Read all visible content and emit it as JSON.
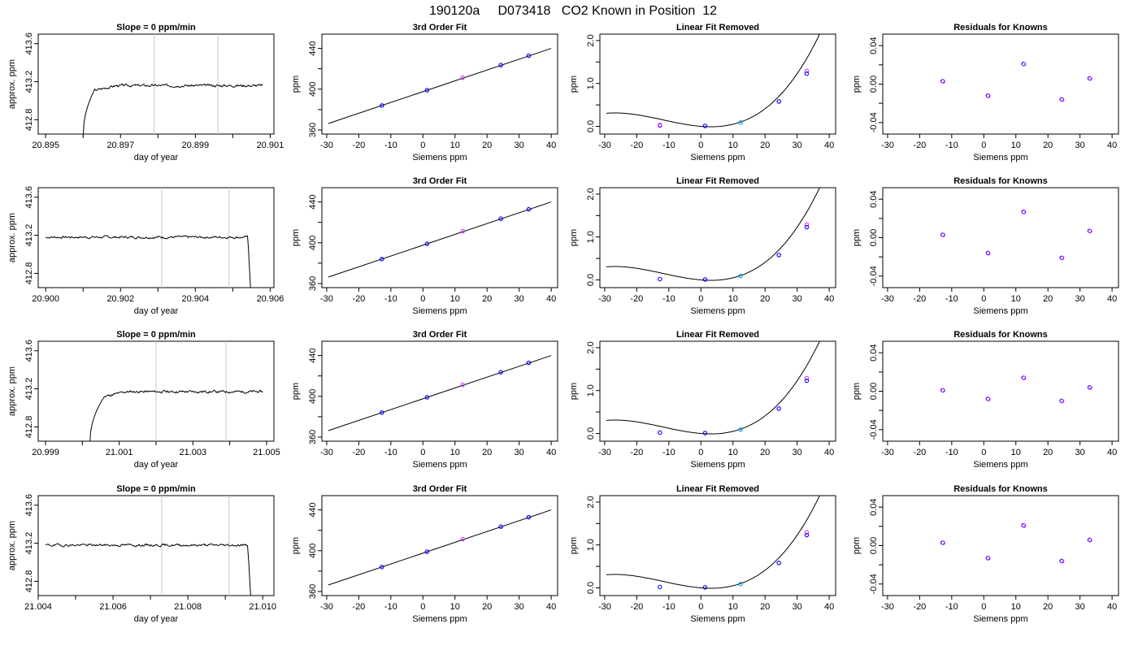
{
  "figure": {
    "title": "190120a     D073418   CO2 Known in Position  12"
  },
  "chart_data": [
    {
      "type": "line",
      "panel": "time",
      "title": "Slope =  0  ppm/min",
      "xlabel": "day of year",
      "ylabel": "approx. ppm",
      "xlim": [
        20.8948,
        20.9011
      ],
      "ylim": [
        412.65,
        413.7
      ],
      "xticks": [
        20.895,
        20.897,
        20.899,
        20.901
      ],
      "xtick_labels": [
        "20.895",
        "20.897",
        "20.899",
        "20.901"
      ],
      "yticks": [
        412.8,
        413.2,
        413.6
      ],
      "ytick_labels": [
        "412.8",
        "413.2",
        "413.6"
      ],
      "vlines": [
        20.8979,
        20.8996
      ],
      "trace": {
        "x_start": 20.896,
        "x_end": 20.9008,
        "rise_end": 20.8963,
        "fall": null,
        "level": 413.16,
        "low": 412.6,
        "seed": 3
      }
    },
    {
      "type": "line",
      "panel": "fit",
      "title": "3rd Order Fit",
      "xlabel": "Siemens ppm",
      "ylabel": "ppm",
      "xlim": [
        -31.5,
        42
      ],
      "ylim": [
        356,
        454
      ],
      "xticks": [
        -30,
        -20,
        -10,
        0,
        10,
        20,
        30,
        40
      ],
      "xtick_labels": [
        "-30",
        "-20",
        "-10",
        "0",
        "10",
        "20",
        "30",
        "40"
      ],
      "yticks": [
        360,
        400,
        440
      ],
      "ytick_labels": [
        "360",
        "400",
        "440"
      ],
      "line": {
        "x": [
          -29.5,
          40
        ],
        "intercept": 397.6,
        "slope": 1.06
      },
      "points": [
        {
          "x": -12.8,
          "y": 384.0,
          "color": "#0000ff"
        },
        {
          "x": 1.3,
          "y": 399.0,
          "color": "#0000ff"
        },
        {
          "x": 12.4,
          "y": 411.3,
          "color": "#cc33ff"
        },
        {
          "x": 24.3,
          "y": 423.6,
          "color": "#0000ff"
        },
        {
          "x": 33.0,
          "y": 432.8,
          "color": "#0000ff"
        }
      ]
    },
    {
      "type": "line",
      "panel": "linrem",
      "title": "Linear Fit Removed",
      "xlabel": "Siemens ppm",
      "ylabel": "ppm",
      "xlim": [
        -31.5,
        42
      ],
      "ylim": [
        -0.18,
        2.15
      ],
      "xticks": [
        -30,
        -20,
        -10,
        0,
        10,
        20,
        30,
        40
      ],
      "xtick_labels": [
        "-30",
        "-20",
        "-10",
        "0",
        "10",
        "20",
        "30",
        "40"
      ],
      "yticks": [
        0.0,
        1.0,
        2.0
      ],
      "ytick_labels": [
        "0.0",
        "1.0",
        "2.0"
      ],
      "curve": {
        "x": [
          -29.5,
          40
        ],
        "c0": 0.0,
        "c1": -0.006,
        "c2": 0.00085,
        "c3": 2.38e-05
      },
      "points": [
        {
          "x": -12.8,
          "y": 0.02,
          "color": "#0000ff"
        },
        {
          "x": -12.8,
          "y": 0.03,
          "color": "#cc33ff"
        },
        {
          "x": 1.3,
          "y": 0.01,
          "color": "#0000ff"
        },
        {
          "x": 12.4,
          "y": 0.09,
          "color": "#00aaff"
        },
        {
          "x": 24.3,
          "y": 0.58,
          "color": "#0000ff"
        },
        {
          "x": 33.0,
          "y": 1.23,
          "color": "#0000ff"
        },
        {
          "x": 33.0,
          "y": 1.29,
          "color": "#cc33ff"
        }
      ]
    },
    {
      "type": "scatter",
      "panel": "resid",
      "title": "Residuals for Knowns",
      "xlabel": "Siemens ppm",
      "ylabel": "ppm",
      "xlim": [
        -31.5,
        42
      ],
      "ylim": [
        -0.052,
        0.052
      ],
      "xticks": [
        -30,
        -20,
        -10,
        0,
        10,
        20,
        30,
        40
      ],
      "xtick_labels": [
        "-30",
        "-20",
        "-10",
        "0",
        "10",
        "20",
        "30",
        "40"
      ],
      "yticks": [
        -0.04,
        0.0,
        0.04
      ],
      "ytick_labels": [
        "-0.04",
        "0.00",
        "0.04"
      ],
      "points": [
        {
          "x": -12.8,
          "y": 0.003
        },
        {
          "x": 1.3,
          "y": -0.012
        },
        {
          "x": 12.4,
          "y": 0.021
        },
        {
          "x": 24.3,
          "y": -0.016
        },
        {
          "x": 33.0,
          "y": 0.006
        }
      ]
    },
    {
      "type": "line",
      "panel": "time",
      "title": "",
      "xlabel": "day of year",
      "ylabel": "approx. ppm",
      "xlim": [
        20.8998,
        20.9061
      ],
      "ylim": [
        412.65,
        413.7
      ],
      "xticks": [
        20.9,
        20.902,
        20.904,
        20.906
      ],
      "xtick_labels": [
        "20.900",
        "20.902",
        "20.904",
        "20.906"
      ],
      "yticks": [
        412.8,
        413.2,
        413.6
      ],
      "ytick_labels": [
        "412.8",
        "413.2",
        "413.6"
      ],
      "vlines": [
        20.9031,
        20.9049
      ],
      "trace": {
        "x_start": 20.9,
        "x_end": 20.9055,
        "rise_end": null,
        "fall": 20.9054,
        "level": 413.18,
        "low": 412.6,
        "seed": 7
      }
    },
    {
      "type": "line",
      "panel": "fit",
      "title": "3rd Order Fit",
      "xlabel": "Siemens ppm",
      "ylabel": "ppm",
      "xlim": [
        -31.5,
        42
      ],
      "ylim": [
        356,
        454
      ],
      "xticks": [
        -30,
        -20,
        -10,
        0,
        10,
        20,
        30,
        40
      ],
      "xtick_labels": [
        "-30",
        "-20",
        "-10",
        "0",
        "10",
        "20",
        "30",
        "40"
      ],
      "yticks": [
        360,
        400,
        440
      ],
      "ytick_labels": [
        "360",
        "400",
        "440"
      ],
      "line": {
        "x": [
          -29.5,
          40
        ],
        "intercept": 397.6,
        "slope": 1.06
      },
      "points": [
        {
          "x": -12.8,
          "y": 384.0,
          "color": "#0000ff"
        },
        {
          "x": 1.3,
          "y": 399.0,
          "color": "#0000ff"
        },
        {
          "x": 12.4,
          "y": 411.3,
          "color": "#cc33ff"
        },
        {
          "x": 24.3,
          "y": 423.6,
          "color": "#0000ff"
        },
        {
          "x": 33.0,
          "y": 432.8,
          "color": "#0000ff"
        }
      ]
    },
    {
      "type": "line",
      "panel": "linrem",
      "title": "Linear Fit Removed",
      "xlabel": "Siemens ppm",
      "ylabel": "ppm",
      "xlim": [
        -31.5,
        42
      ],
      "ylim": [
        -0.18,
        2.15
      ],
      "xticks": [
        -30,
        -20,
        -10,
        0,
        10,
        20,
        30,
        40
      ],
      "xtick_labels": [
        "-30",
        "-20",
        "-10",
        "0",
        "10",
        "20",
        "30",
        "40"
      ],
      "yticks": [
        0.0,
        1.0,
        2.0
      ],
      "ytick_labels": [
        "0.0",
        "1.0",
        "2.0"
      ],
      "curve": {
        "x": [
          -29.5,
          40
        ],
        "c0": 0.0,
        "c1": -0.006,
        "c2": 0.00085,
        "c3": 2.38e-05
      },
      "points": [
        {
          "x": -12.8,
          "y": 0.02,
          "color": "#0000ff"
        },
        {
          "x": 1.3,
          "y": 0.01,
          "color": "#0000ff"
        },
        {
          "x": 12.4,
          "y": 0.09,
          "color": "#00aaff"
        },
        {
          "x": 24.3,
          "y": 0.58,
          "color": "#0000ff"
        },
        {
          "x": 33.0,
          "y": 1.23,
          "color": "#0000ff"
        },
        {
          "x": 33.0,
          "y": 1.29,
          "color": "#cc33ff"
        }
      ]
    },
    {
      "type": "scatter",
      "panel": "resid",
      "title": "Residuals for Knowns",
      "xlabel": "Siemens ppm",
      "ylabel": "ppm",
      "xlim": [
        -31.5,
        42
      ],
      "ylim": [
        -0.052,
        0.052
      ],
      "xticks": [
        -30,
        -20,
        -10,
        0,
        10,
        20,
        30,
        40
      ],
      "xtick_labels": [
        "-30",
        "-20",
        "-10",
        "0",
        "10",
        "20",
        "30",
        "40"
      ],
      "yticks": [
        -0.04,
        0.0,
        0.04
      ],
      "ytick_labels": [
        "-0.04",
        "0.00",
        "0.04"
      ],
      "points": [
        {
          "x": -12.8,
          "y": 0.003
        },
        {
          "x": 1.3,
          "y": -0.016
        },
        {
          "x": 12.4,
          "y": 0.027
        },
        {
          "x": 24.3,
          "y": -0.021
        },
        {
          "x": 33.0,
          "y": 0.007
        }
      ]
    },
    {
      "type": "line",
      "panel": "time",
      "title": "Slope =  0  ppm/min",
      "xlabel": "day of year",
      "ylabel": "approx. ppm",
      "xlim": [
        20.9988,
        21.0052
      ],
      "ylim": [
        412.65,
        413.7
      ],
      "xticks": [
        20.999,
        21.001,
        21.003,
        21.005
      ],
      "xtick_labels": [
        "20.999",
        "21.001",
        "21.003",
        "21.005"
      ],
      "yticks": [
        412.8,
        413.2,
        413.6
      ],
      "ytick_labels": [
        "412.8",
        "413.2",
        "413.6"
      ],
      "vlines": [
        21.002,
        21.0039
      ],
      "trace": {
        "x_start": 21.0002,
        "x_end": 21.0049,
        "rise_end": 21.0006,
        "fall": null,
        "level": 413.17,
        "low": 412.6,
        "seed": 11
      }
    },
    {
      "type": "line",
      "panel": "fit",
      "title": "3rd Order Fit",
      "xlabel": "Siemens ppm",
      "ylabel": "ppm",
      "xlim": [
        -31.5,
        42
      ],
      "ylim": [
        356,
        454
      ],
      "xticks": [
        -30,
        -20,
        -10,
        0,
        10,
        20,
        30,
        40
      ],
      "xtick_labels": [
        "-30",
        "-20",
        "-10",
        "0",
        "10",
        "20",
        "30",
        "40"
      ],
      "yticks": [
        360,
        400,
        440
      ],
      "ytick_labels": [
        "360",
        "400",
        "440"
      ],
      "line": {
        "x": [
          -29.5,
          40
        ],
        "intercept": 397.6,
        "slope": 1.06
      },
      "points": [
        {
          "x": -12.8,
          "y": 384.0,
          "color": "#0000ff"
        },
        {
          "x": 1.3,
          "y": 399.0,
          "color": "#0000ff"
        },
        {
          "x": 12.4,
          "y": 411.3,
          "color": "#cc33ff"
        },
        {
          "x": 24.3,
          "y": 423.6,
          "color": "#0000ff"
        },
        {
          "x": 33.0,
          "y": 432.8,
          "color": "#0000ff"
        }
      ]
    },
    {
      "type": "line",
      "panel": "linrem",
      "title": "Linear Fit Removed",
      "xlabel": "Siemens ppm",
      "ylabel": "ppm",
      "xlim": [
        -31.5,
        42
      ],
      "ylim": [
        -0.18,
        2.15
      ],
      "xticks": [
        -30,
        -20,
        -10,
        0,
        10,
        20,
        30,
        40
      ],
      "xtick_labels": [
        "-30",
        "-20",
        "-10",
        "0",
        "10",
        "20",
        "30",
        "40"
      ],
      "yticks": [
        0.0,
        1.0,
        2.0
      ],
      "ytick_labels": [
        "0.0",
        "1.0",
        "2.0"
      ],
      "curve": {
        "x": [
          -29.5,
          40
        ],
        "c0": 0.0,
        "c1": -0.006,
        "c2": 0.00085,
        "c3": 2.38e-05
      },
      "points": [
        {
          "x": -12.8,
          "y": 0.02,
          "color": "#0000ff"
        },
        {
          "x": 1.3,
          "y": 0.01,
          "color": "#0000ff"
        },
        {
          "x": 12.4,
          "y": 0.09,
          "color": "#00aaff"
        },
        {
          "x": 24.3,
          "y": 0.58,
          "color": "#0000ff"
        },
        {
          "x": 33.0,
          "y": 1.23,
          "color": "#0000ff"
        },
        {
          "x": 33.0,
          "y": 1.29,
          "color": "#cc33ff"
        }
      ]
    },
    {
      "type": "scatter",
      "panel": "resid",
      "title": "Residuals for Knowns",
      "xlabel": "Siemens ppm",
      "ylabel": "ppm",
      "xlim": [
        -31.5,
        42
      ],
      "ylim": [
        -0.052,
        0.052
      ],
      "xticks": [
        -30,
        -20,
        -10,
        0,
        10,
        20,
        30,
        40
      ],
      "xtick_labels": [
        "-30",
        "-20",
        "-10",
        "0",
        "10",
        "20",
        "30",
        "40"
      ],
      "yticks": [
        -0.04,
        0.0,
        0.04
      ],
      "ytick_labels": [
        "-0.04",
        "0.00",
        "0.04"
      ],
      "points": [
        {
          "x": -12.8,
          "y": 0.001
        },
        {
          "x": 1.3,
          "y": -0.008
        },
        {
          "x": 12.4,
          "y": 0.014
        },
        {
          "x": 24.3,
          "y": -0.01
        },
        {
          "x": 33.0,
          "y": 0.004
        }
      ]
    },
    {
      "type": "line",
      "panel": "time",
      "title": "Slope =  0  ppm/min",
      "xlabel": "day of year",
      "ylabel": "approx. ppm",
      "xlim": [
        21.004,
        21.0103
      ],
      "ylim": [
        412.65,
        413.7
      ],
      "xticks": [
        21.004,
        21.006,
        21.008,
        21.01
      ],
      "xtick_labels": [
        "21.004",
        "21.006",
        "21.008",
        "21.010"
      ],
      "yticks": [
        412.8,
        413.2,
        413.6
      ],
      "ytick_labels": [
        "412.8",
        "413.2",
        "413.6"
      ],
      "vlines": [
        21.0073,
        21.0091
      ],
      "trace": {
        "x_start": 21.0042,
        "x_end": 21.0097,
        "rise_end": null,
        "fall": 21.0096,
        "level": 413.18,
        "low": 412.6,
        "seed": 19
      }
    },
    {
      "type": "line",
      "panel": "fit",
      "title": "3rd Order Fit",
      "xlabel": "Siemens ppm",
      "ylabel": "ppm",
      "xlim": [
        -31.5,
        42
      ],
      "ylim": [
        356,
        454
      ],
      "xticks": [
        -30,
        -20,
        -10,
        0,
        10,
        20,
        30,
        40
      ],
      "xtick_labels": [
        "-30",
        "-20",
        "-10",
        "0",
        "10",
        "20",
        "30",
        "40"
      ],
      "yticks": [
        360,
        400,
        440
      ],
      "ytick_labels": [
        "360",
        "400",
        "440"
      ],
      "line": {
        "x": [
          -29.5,
          40
        ],
        "intercept": 397.6,
        "slope": 1.06
      },
      "points": [
        {
          "x": -12.8,
          "y": 384.0,
          "color": "#0000ff"
        },
        {
          "x": 1.3,
          "y": 399.0,
          "color": "#0000ff"
        },
        {
          "x": 12.4,
          "y": 411.3,
          "color": "#cc33ff"
        },
        {
          "x": 24.3,
          "y": 423.6,
          "color": "#0000ff"
        },
        {
          "x": 33.0,
          "y": 432.8,
          "color": "#0000ff"
        }
      ]
    },
    {
      "type": "line",
      "panel": "linrem",
      "title": "Linear Fit Removed",
      "xlabel": "Siemens ppm",
      "ylabel": "ppm",
      "xlim": [
        -31.5,
        42
      ],
      "ylim": [
        -0.18,
        2.15
      ],
      "xticks": [
        -30,
        -20,
        -10,
        0,
        10,
        20,
        30,
        40
      ],
      "xtick_labels": [
        "-30",
        "-20",
        "-10",
        "0",
        "10",
        "20",
        "30",
        "40"
      ],
      "yticks": [
        0.0,
        1.0,
        2.0
      ],
      "ytick_labels": [
        "0.0",
        "1.0",
        "2.0"
      ],
      "curve": {
        "x": [
          -29.5,
          40
        ],
        "c0": 0.0,
        "c1": -0.006,
        "c2": 0.00085,
        "c3": 2.38e-05
      },
      "points": [
        {
          "x": -12.8,
          "y": 0.02,
          "color": "#0000ff"
        },
        {
          "x": 1.3,
          "y": 0.01,
          "color": "#0000ff"
        },
        {
          "x": 12.4,
          "y": 0.09,
          "color": "#00aaff"
        },
        {
          "x": 24.3,
          "y": 0.58,
          "color": "#0000ff"
        },
        {
          "x": 33.0,
          "y": 1.23,
          "color": "#0000ff"
        },
        {
          "x": 33.0,
          "y": 1.29,
          "color": "#cc33ff"
        }
      ]
    },
    {
      "type": "scatter",
      "panel": "resid",
      "title": "Residuals for Knowns",
      "xlabel": "Siemens ppm",
      "ylabel": "ppm",
      "xlim": [
        -31.5,
        42
      ],
      "ylim": [
        -0.052,
        0.052
      ],
      "xticks": [
        -30,
        -20,
        -10,
        0,
        10,
        20,
        30,
        40
      ],
      "xtick_labels": [
        "-30",
        "-20",
        "-10",
        "0",
        "10",
        "20",
        "30",
        "40"
      ],
      "yticks": [
        -0.04,
        0.0,
        0.04
      ],
      "ytick_labels": [
        "-0.04",
        "0.00",
        "0.04"
      ],
      "points": [
        {
          "x": -12.8,
          "y": 0.003
        },
        {
          "x": 1.3,
          "y": -0.013
        },
        {
          "x": 12.4,
          "y": 0.021
        },
        {
          "x": 24.3,
          "y": -0.016
        },
        {
          "x": 33.0,
          "y": 0.006
        }
      ]
    }
  ]
}
